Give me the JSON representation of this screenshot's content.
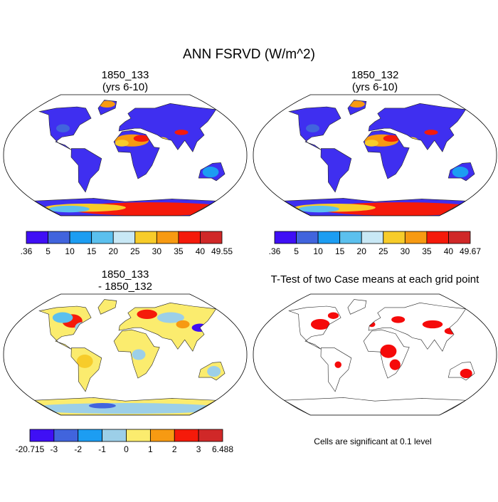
{
  "title": "ANN FSRVD (W/m^2)",
  "panels": [
    {
      "title": [
        "1850_133",
        "(yrs 6-10)"
      ],
      "colorbar": {
        "labels": [
          ".36",
          "5",
          "10",
          "15",
          "20",
          "25",
          "30",
          "35",
          "40",
          "49.55"
        ],
        "colors": [
          "#3f0ff5",
          "#4164dd",
          "#1c9df2",
          "#5bc0ee",
          "#c8e8f5",
          "#f7cc2a",
          "#f79a12",
          "#f51a0a",
          "#d02828"
        ]
      }
    },
    {
      "title": [
        "1850_132",
        "(yrs 6-10)"
      ],
      "colorbar": {
        "labels": [
          ".36",
          "5",
          "10",
          "15",
          "20",
          "25",
          "30",
          "35",
          "40",
          "49.67"
        ],
        "colors": [
          "#3f0ff5",
          "#4164dd",
          "#1c9df2",
          "#5bc0ee",
          "#c8e8f5",
          "#f7cc2a",
          "#f79a12",
          "#f51a0a",
          "#d02828"
        ]
      }
    },
    {
      "title": [
        "1850_133",
        "- 1850_132"
      ],
      "colorbar": {
        "labels": [
          "-20.715",
          "-3",
          "-2",
          "-1",
          "0",
          "1",
          "2",
          "3",
          "6.488"
        ],
        "colors": [
          "#3f0ff5",
          "#4164dd",
          "#1c9df2",
          "#9ccfe8",
          "#fbec6e",
          "#f79a12",
          "#f51a0a",
          "#d02828"
        ]
      }
    },
    {
      "title": [
        "T-Test of two Case means at each grid point"
      ],
      "note": "Cells are significant at 0.1 level"
    }
  ]
}
